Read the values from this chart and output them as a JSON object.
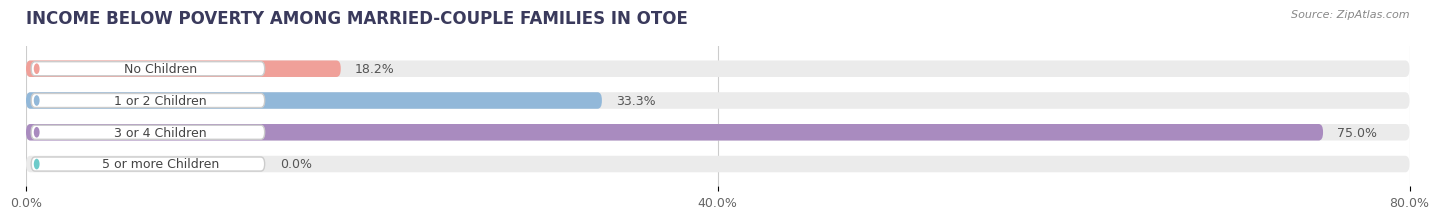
{
  "title": "INCOME BELOW POVERTY AMONG MARRIED-COUPLE FAMILIES IN OTOE",
  "source": "Source: ZipAtlas.com",
  "categories": [
    "No Children",
    "1 or 2 Children",
    "3 or 4 Children",
    "5 or more Children"
  ],
  "values": [
    18.2,
    33.3,
    75.0,
    0.0
  ],
  "bar_colors": [
    "#f0a099",
    "#92b8d9",
    "#a98bbf",
    "#6ecbca"
  ],
  "xlim": [
    0,
    80
  ],
  "xticks": [
    0.0,
    40.0,
    80.0
  ],
  "xticklabels": [
    "0.0%",
    "40.0%",
    "80.0%"
  ],
  "bar_height": 0.52,
  "background_color": "#ffffff",
  "bar_background_color": "#ebebeb",
  "title_fontsize": 12,
  "source_fontsize": 8,
  "label_fontsize": 9,
  "value_fontsize": 9,
  "title_color": "#3a3a5c",
  "label_text_color": "#444444",
  "value_text_color": "#555555",
  "source_color": "#888888"
}
